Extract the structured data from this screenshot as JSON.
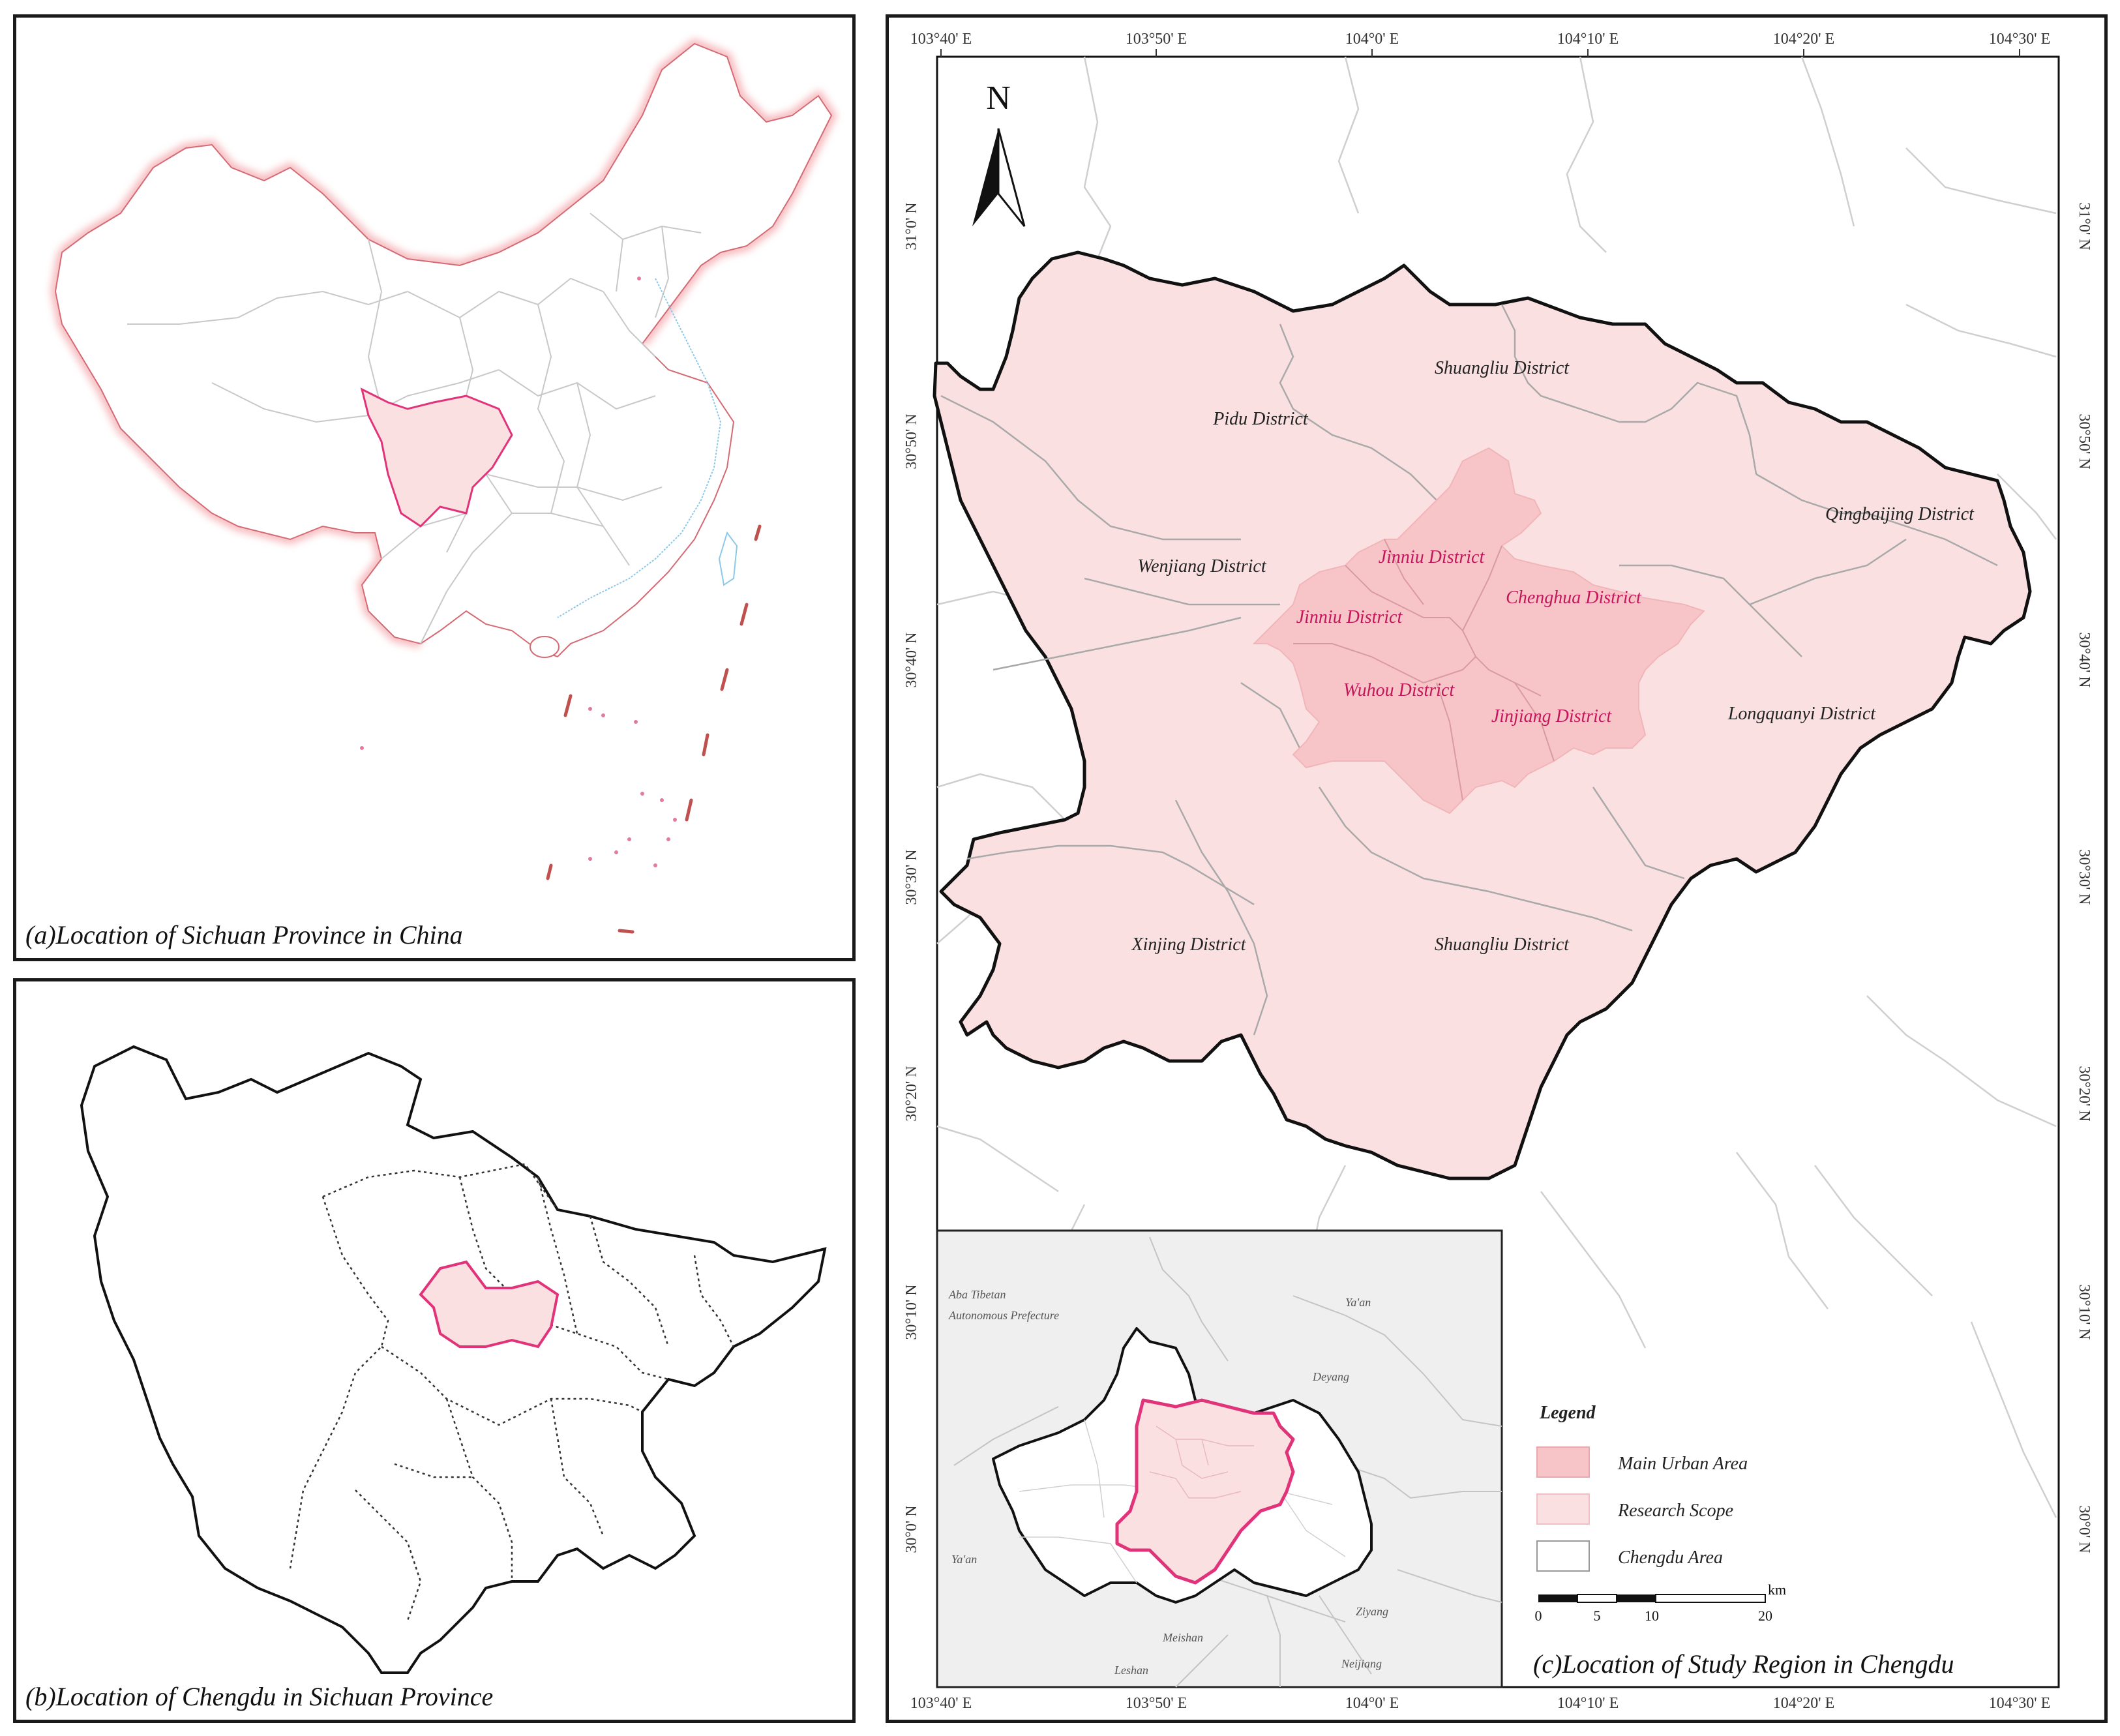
{
  "panel_a": {
    "caption": "(a)Location of Sichuan Province in China"
  },
  "panel_b": {
    "caption": "(b)Location of Chengdu in Sichuan Province"
  },
  "panel_c": {
    "caption": "(c)Location of Study Region in Chengdu",
    "lon_ticks": [
      "103°40' E",
      "103°50' E",
      "104°0' E",
      "104°10' E",
      "104°20' E",
      "104°30' E"
    ],
    "lat_ticks": [
      "31°0' N",
      "30°50' N",
      "30°40' N",
      "30°30' N",
      "30°20' N",
      "30°10' N",
      "30°0' N"
    ],
    "north_label": "N",
    "districts": {
      "pidu": "Pidu District",
      "shuangliu_n": "Shuangliu District",
      "qingbaijiang": "Qingbaijing District",
      "wenjiang": "Wenjiang District",
      "jinniu_1": "Jinniu District",
      "jinniu_2": "Jinniu District",
      "chenghua": "Chenghua District",
      "wuhou": "Wuhou District",
      "jinjiang": "Jinjiang District",
      "longquanyi": "Longquanyi District",
      "xinjing": "Xinjing District",
      "shuangliu_s": "Shuangliu District"
    },
    "inset": {
      "aba": "Aba Tibetan",
      "aba2": "Autonomous Prefecture",
      "yaan_ne": "Ya'an",
      "deyang": "Deyang",
      "yaan_w": "Ya'an",
      "meishan": "Meishan",
      "ziyang": "Ziyang",
      "leshan": "Leshan",
      "neijiang": "Neijiang"
    },
    "legend": {
      "title": "Legend",
      "items": [
        {
          "label": "Main  Urban Area",
          "color": "#f7c5c8"
        },
        {
          "label": "Research Scope",
          "color": "#fbe0e1"
        },
        {
          "label": "Chengdu Area",
          "color": "#ffffff"
        }
      ]
    },
    "scale": {
      "unit": "km",
      "labels": [
        "0",
        "5",
        "10",
        "20"
      ]
    }
  },
  "colors": {
    "main_urban": "#f7c5c8",
    "research": "#fbe0e1",
    "highlight": "#e0337a",
    "border": "#111111"
  }
}
